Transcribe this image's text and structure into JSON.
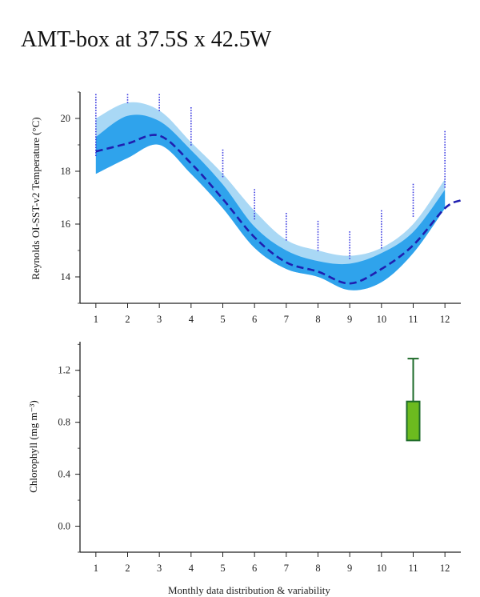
{
  "page": {
    "title": "AMT-box at 37.5S x 42.5W",
    "footer_text": "Monthly data distribution & variability"
  },
  "colors": {
    "outer_band": "#a9d8f5",
    "inner_band": "#2fa3ec",
    "mean_line": "#1f1fb0",
    "obs_points": "#3a3ae0",
    "box_fill": "#6cbb1f",
    "box_stroke": "#1e6b2a"
  },
  "chart_data": [
    {
      "type": "area",
      "ylabel": "Reynolds OI-SST-v2 Temperature (°C)",
      "xlabel": "",
      "xlim": [
        0.5,
        12.5
      ],
      "ylim": [
        13.0,
        21.0
      ],
      "x_ticks": [
        1,
        2,
        3,
        4,
        5,
        6,
        7,
        8,
        9,
        10,
        11,
        12
      ],
      "y_ticks": [
        14,
        16,
        18,
        20
      ],
      "series": [
        {
          "role": "outer-range",
          "x": [
            1,
            2,
            3,
            4,
            5,
            6,
            7,
            8,
            9,
            10,
            11,
            12
          ],
          "upper": [
            20.0,
            20.6,
            20.3,
            19.1,
            17.9,
            16.5,
            15.4,
            15.0,
            14.8,
            15.1,
            16.0,
            17.7
          ],
          "lower": [
            17.9,
            18.5,
            19.0,
            17.9,
            16.6,
            15.1,
            14.3,
            14.0,
            13.5,
            13.8,
            14.9,
            16.6
          ]
        },
        {
          "role": "inner-range",
          "x": [
            1,
            2,
            3,
            4,
            5,
            6,
            7,
            8,
            9,
            10,
            11,
            12
          ],
          "upper": [
            19.3,
            20.1,
            19.9,
            18.8,
            17.5,
            15.9,
            15.0,
            14.6,
            14.5,
            14.9,
            15.7,
            17.3
          ],
          "lower": [
            17.9,
            18.5,
            19.0,
            17.9,
            16.6,
            15.1,
            14.3,
            14.0,
            13.5,
            13.8,
            14.9,
            16.6
          ]
        },
        {
          "role": "mean",
          "x": [
            1,
            2,
            3,
            4,
            5,
            6,
            7,
            8,
            9,
            10,
            11,
            12,
            12.5
          ],
          "y": [
            18.75,
            19.05,
            19.35,
            18.3,
            16.95,
            15.5,
            14.55,
            14.2,
            13.75,
            14.3,
            15.2,
            16.6,
            16.9
          ]
        }
      ],
      "observations": [
        {
          "x": 1,
          "y_min": 18.6,
          "y_max": 20.9
        },
        {
          "x": 2,
          "y_min": 20.6,
          "y_max": 20.9
        },
        {
          "x": 3,
          "y_min": 20.3,
          "y_max": 20.9
        },
        {
          "x": 4,
          "y_min": 19.0,
          "y_max": 20.4
        },
        {
          "x": 5,
          "y_min": 17.8,
          "y_max": 18.8
        },
        {
          "x": 6,
          "y_min": 16.2,
          "y_max": 17.3
        },
        {
          "x": 7,
          "y_min": 15.4,
          "y_max": 16.4
        },
        {
          "x": 8,
          "y_min": 15.0,
          "y_max": 16.1
        },
        {
          "x": 9,
          "y_min": 14.7,
          "y_max": 15.7
        },
        {
          "x": 10,
          "y_min": 15.1,
          "y_max": 16.5
        },
        {
          "x": 11,
          "y_min": 16.3,
          "y_max": 17.5
        },
        {
          "x": 12,
          "y_min": 17.4,
          "y_max": 19.5
        }
      ]
    },
    {
      "type": "box",
      "ylabel": "Chlorophyll (mg m⁻³)",
      "xlabel": "",
      "xlim": [
        0.5,
        12.5
      ],
      "ylim": [
        -0.2,
        1.42
      ],
      "x_ticks": [
        1,
        2,
        3,
        4,
        5,
        6,
        7,
        8,
        9,
        10,
        11,
        12
      ],
      "y_ticks": [
        0.0,
        0.4,
        0.8,
        1.2
      ],
      "y_tick_labels": [
        "0.0",
        "0.4",
        "0.8",
        "1.2"
      ],
      "boxes": [
        {
          "x": 11,
          "q1": 0.66,
          "q3": 0.96,
          "whisker_high": 1.29
        }
      ]
    }
  ]
}
